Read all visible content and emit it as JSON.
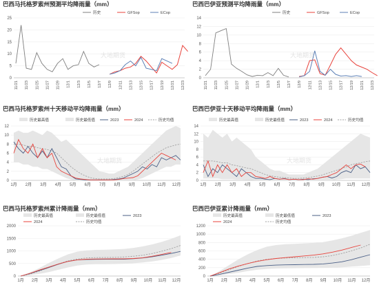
{
  "colors": {
    "history": "#7f7f7f",
    "gfs": "#e8413a",
    "ecmwf": "#5b7fb5",
    "band": "#e6e6e6",
    "y2023": "#4a5f86",
    "y2024": "#e8413a",
    "avg": "#a0a0a0"
  },
  "watermark": "大地期货",
  "chart_data": [
    {
      "id": "mt_forecast",
      "type": "line",
      "title": "巴西马托格罗索州预测平均降雨量（mm）",
      "legend": [
        "历史",
        "GFSop",
        "ECop"
      ],
      "ylim": [
        0,
        25
      ],
      "yticks": [
        0,
        5,
        10,
        15,
        20,
        25
      ],
      "x_labels": [
        "11/21",
        "11/23",
        "11/25",
        "11/27",
        "11/29",
        "12/1",
        "12/3",
        "12/5",
        "12/7",
        "12/9",
        "12/11",
        "12/13",
        "12/15",
        "12/17",
        "12/19",
        "12/21",
        "12/23"
      ],
      "n": 33,
      "series": [
        {
          "name": "历史",
          "role": "history",
          "start": 0,
          "values": [
            6,
            22,
            4,
            3.5,
            10.5,
            6,
            3.5,
            2.5,
            6,
            8,
            3.5,
            5,
            5.5,
            11,
            6,
            4.5,
            5.5
          ]
        },
        {
          "name": "GFSop",
          "role": "gfs",
          "start": 18,
          "values": [
            1.5,
            2.5,
            3,
            4,
            4.5,
            6,
            9,
            7,
            4.5,
            2,
            6.5,
            5,
            3.5,
            5.5,
            13.5,
            11
          ]
        },
        {
          "name": "ECop",
          "role": "ecmwf",
          "start": 18,
          "values": [
            1.5,
            2,
            3,
            5.5,
            7,
            5,
            8.5,
            4,
            3.5,
            3,
            8,
            7,
            6
          ]
        }
      ]
    },
    {
      "id": "ba_forecast",
      "type": "line",
      "title": "巴西巴伊亚预测平均降雨量（mm）",
      "legend": [
        "历史",
        "GFSop",
        "ECop"
      ],
      "ylim": [
        0,
        14
      ],
      "yticks": [
        0,
        2,
        4,
        6,
        8,
        10,
        12,
        14
      ],
      "x_labels": [
        "11/21",
        "11/23",
        "11/25",
        "11/27",
        "11/29",
        "12/1",
        "12/3",
        "12/5",
        "12/7",
        "12/9",
        "12/11",
        "12/13",
        "12/15",
        "12/17",
        "12/19",
        "12/21",
        "12/23"
      ],
      "n": 33,
      "series": [
        {
          "name": "历史",
          "role": "history",
          "start": 0,
          "values": [
            0.5,
            2,
            10.5,
            11,
            11.5,
            3.2,
            2.2,
            1.5,
            0.7,
            0.3,
            0.6,
            0.5,
            1.2,
            0.5,
            2.2,
            0.6,
            0.2
          ]
        },
        {
          "name": "GFSop",
          "role": "gfs",
          "start": 18,
          "values": [
            0.3,
            0.5,
            4,
            4.2,
            1,
            0.6,
            3,
            5.5,
            7,
            5.5,
            4,
            3,
            2.5,
            2,
            1.2,
            0.5
          ]
        },
        {
          "name": "ECop",
          "role": "ecmwf",
          "start": 18,
          "values": [
            0.2,
            0.5,
            1.5,
            6.3,
            1.5,
            0.6,
            2,
            0.8,
            0.4,
            0.5,
            0.3,
            0.5,
            0.3
          ]
        }
      ]
    },
    {
      "id": "mt_10day",
      "type": "line",
      "title": "巴西马托格罗索州十天移动平均降雨量（mm）",
      "legend": [
        "历史最高值",
        "历史最低值",
        "2023",
        "2024",
        "历史均值"
      ],
      "ylim": [
        0,
        12
      ],
      "yticks": [
        0,
        2,
        4,
        6,
        8,
        10,
        12
      ],
      "x_labels": [
        "1月",
        "2月",
        "3月",
        "4月",
        "5月",
        "6月",
        "7月",
        "8月",
        "9月",
        "10月",
        "11月",
        "12月"
      ],
      "band_high": [
        10.5,
        11,
        10.5,
        10.5,
        11,
        10.5,
        10,
        11,
        10.5,
        9.5,
        8.5,
        9,
        8,
        7,
        6,
        5,
        4,
        3,
        2,
        1.8,
        1.5,
        1.5,
        2,
        2.5,
        3,
        4,
        5,
        6,
        7,
        8,
        9,
        10,
        11,
        11.5,
        12,
        11.5
      ],
      "band_low": [
        4,
        4,
        3.5,
        3.5,
        3,
        3,
        2.5,
        2.5,
        2,
        1.5,
        1,
        0.5,
        0.2,
        0,
        0,
        0,
        0,
        0,
        0,
        0,
        0,
        0,
        0,
        0,
        0,
        0,
        0.2,
        0.5,
        1,
        1.5,
        2,
        2.5,
        3,
        3,
        3.5,
        3.5
      ],
      "series": [
        {
          "name": "历史均值",
          "role": "avg",
          "dashed": true,
          "values": [
            8,
            8,
            7.8,
            7.5,
            7.5,
            7.2,
            7,
            6.8,
            6.5,
            6,
            5,
            4,
            3,
            2.2,
            1.5,
            1,
            0.6,
            0.4,
            0.3,
            0.3,
            0.3,
            0.4,
            0.6,
            0.9,
            1.3,
            2,
            2.8,
            3.6,
            4.4,
            5.2,
            6,
            6.6,
            7.2,
            7.5,
            7.8,
            8
          ]
        },
        {
          "name": "2023",
          "role": "y2023",
          "values": [
            8.5,
            7,
            6,
            7.5,
            6,
            5,
            6.5,
            5,
            7,
            5,
            3,
            2.5,
            1,
            0.3,
            0.2,
            0.1,
            0.1,
            0.1,
            0.1,
            0.1,
            0.1,
            0.2,
            0.3,
            0.5,
            1,
            1.5,
            2,
            3,
            2.5,
            3.5,
            3,
            5,
            4.5,
            5,
            5.5,
            4.5
          ]
        },
        {
          "name": "2024",
          "role": "y2024",
          "values": [
            6,
            9,
            7,
            6,
            8,
            5,
            7,
            5,
            6,
            3,
            2,
            1.5,
            1,
            0.5,
            0.3,
            0.2,
            0.1,
            0.1,
            0.1,
            0.1,
            0.1,
            0.1,
            0.2,
            0.4,
            0.5,
            0.6,
            1,
            2,
            3,
            4,
            5,
            6,
            5.5,
            5,
            4.5
          ]
        }
      ]
    },
    {
      "id": "ba_10day",
      "type": "line",
      "title": "巴西巴伊亚十天移动平均降雨量（mm）",
      "legend": [
        "历史最高值",
        "历史最低值",
        "2023",
        "2024",
        "历史均值"
      ],
      "ylim": [
        0,
        14
      ],
      "yticks": [
        0,
        2,
        4,
        6,
        8,
        10,
        12,
        14
      ],
      "x_labels": [
        "1月",
        "2月",
        "3月",
        "4月",
        "5月",
        "6月",
        "7月",
        "8月",
        "9月",
        "10月",
        "11月",
        "12月"
      ],
      "band_high": [
        12,
        11,
        13,
        12,
        11,
        12,
        10,
        11,
        10,
        9,
        8,
        6,
        5,
        4,
        3,
        2.5,
        2.5,
        2,
        1.5,
        1.5,
        1.5,
        1.5,
        2,
        2.5,
        3,
        4,
        5,
        6,
        7,
        8,
        9,
        10,
        11,
        12,
        11.5,
        11
      ],
      "band_low": [
        0.5,
        0.5,
        0.5,
        0.5,
        0.3,
        0.3,
        0.3,
        0.2,
        0.2,
        0.1,
        0.1,
        0,
        0,
        0,
        0,
        0,
        0,
        0,
        0,
        0,
        0,
        0,
        0,
        0,
        0,
        0,
        0,
        0,
        0.2,
        0.3,
        0.5,
        0.5,
        0.5,
        0.5,
        0.5,
        0.5
      ],
      "series": [
        {
          "name": "历史均值",
          "role": "avg",
          "dashed": true,
          "values": [
            5,
            5,
            5,
            4.8,
            4.5,
            4.5,
            4,
            3.8,
            3.5,
            3.2,
            3,
            2.5,
            2,
            1.5,
            1.2,
            1,
            0.8,
            0.7,
            0.6,
            0.5,
            0.5,
            0.6,
            0.7,
            0.9,
            1.1,
            1.4,
            1.8,
            2.2,
            2.6,
            3,
            3.5,
            4,
            4.3,
            4.5,
            4.8,
            5
          ]
        },
        {
          "name": "2023",
          "role": "y2023",
          "values": [
            4,
            1,
            3,
            2,
            4,
            3,
            2,
            1,
            3,
            2,
            1,
            0.5,
            0.5,
            0.3,
            0.2,
            0.5,
            0.3,
            0.5,
            0.2,
            0.3,
            0.2,
            0.3,
            0.2,
            0.4,
            0.5,
            0.8,
            1,
            0.6,
            1,
            2,
            2.5,
            2,
            4,
            3,
            3.5,
            2
          ]
        },
        {
          "name": "2024",
          "role": "y2024",
          "values": [
            2,
            5,
            1,
            4,
            2,
            4,
            2,
            3,
            1,
            2,
            2,
            1,
            0.8,
            0.5,
            1,
            0.5,
            0.3,
            0.4,
            0.2,
            0.3,
            0.2,
            0.2,
            0.4,
            0.3,
            0.5,
            0.8,
            1,
            1.5,
            2,
            3,
            4,
            3,
            4,
            4.2,
            3.5
          ]
        }
      ]
    },
    {
      "id": "mt_cum",
      "type": "line",
      "title": "巴西马托格罗索州累计降雨量（mm）",
      "legend": [
        "历史最高值",
        "历史最低值",
        "2023",
        "2024",
        "历史均值"
      ],
      "ylim": [
        0,
        2000
      ],
      "yticks": [
        0,
        500,
        1000,
        1500,
        2000
      ],
      "x_labels": [
        "1月",
        "2月",
        "3月",
        "4月",
        "5月",
        "6月",
        "7月",
        "8月",
        "9月",
        "10月",
        "11月",
        "12月"
      ],
      "band_high": [
        0,
        150,
        320,
        520,
        700,
        860,
        970,
        1020,
        1040,
        1050,
        1060,
        1080,
        1120,
        1180,
        1260,
        1360,
        1480,
        1620
      ],
      "band_low": [
        0,
        40,
        90,
        160,
        250,
        340,
        420,
        460,
        470,
        475,
        480,
        490,
        510,
        540,
        580,
        640,
        720,
        820
      ],
      "series": [
        {
          "name": "历史均值",
          "role": "avg",
          "dashed": true,
          "values": [
            0,
            80,
            200,
            340,
            480,
            600,
            680,
            720,
            735,
            740,
            745,
            760,
            790,
            830,
            900,
            990,
            1090,
            1220
          ]
        },
        {
          "name": "2023",
          "role": "y2023",
          "values": [
            0,
            100,
            220,
            340,
            470,
            580,
            640,
            660,
            665,
            668,
            670,
            672,
            690,
            720,
            770,
            830,
            900,
            980
          ]
        },
        {
          "name": "2024",
          "role": "y2024",
          "values": [
            0,
            110,
            240,
            360,
            480,
            580,
            640,
            670,
            680,
            682,
            684,
            688,
            700,
            730,
            790,
            860,
            940
          ]
        }
      ]
    },
    {
      "id": "ba_cum",
      "type": "line",
      "title": "巴西巴伊亚累计降雨量（mm）",
      "legend": [
        "历史最高值",
        "历史最低值",
        "2023",
        "2024",
        "历史均值"
      ],
      "ylim": [
        0,
        1200
      ],
      "yticks": [
        0,
        200,
        400,
        600,
        800,
        1000,
        1200
      ],
      "x_labels": [
        "1月",
        "2月",
        "3月",
        "4月",
        "5月",
        "6月",
        "7月",
        "8月",
        "9月",
        "10月",
        "11月",
        "12月"
      ],
      "band_high": [
        0,
        120,
        260,
        400,
        520,
        620,
        700,
        740,
        760,
        770,
        780,
        790,
        810,
        850,
        900,
        960,
        1030,
        1100
      ],
      "band_low": [
        0,
        20,
        50,
        80,
        120,
        150,
        170,
        180,
        185,
        188,
        190,
        192,
        195,
        200,
        210,
        225,
        240,
        260
      ],
      "series": [
        {
          "name": "历史均值",
          "role": "avg",
          "dashed": true,
          "values": [
            0,
            70,
            150,
            230,
            300,
            360,
            400,
            420,
            430,
            435,
            440,
            445,
            460,
            490,
            540,
            600,
            670,
            760
          ]
        },
        {
          "name": "2023",
          "role": "y2023",
          "values": [
            0,
            40,
            90,
            140,
            190,
            230,
            250,
            262,
            268,
            272,
            276,
            280,
            290,
            310,
            340,
            390,
            450,
            510
          ]
        },
        {
          "name": "2024",
          "role": "y2024",
          "values": [
            0,
            80,
            170,
            240,
            300,
            350,
            390,
            420,
            440,
            460,
            480,
            500,
            530,
            570,
            620,
            680,
            740
          ]
        }
      ]
    }
  ]
}
